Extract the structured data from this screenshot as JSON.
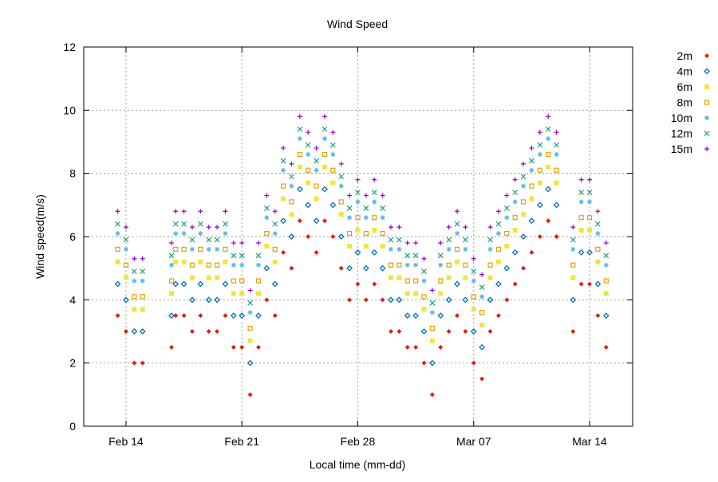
{
  "chart_data": {
    "type": "scatter",
    "title": "Wind Speed",
    "xlabel": "Local time (mm-dd)",
    "ylabel": "Wind speed(m/s)",
    "x_units": "day index where Feb 1 = 1 (Mar 1 = 29)",
    "xlim": [
      11.45,
      44.6
    ],
    "ylim": [
      0,
      12
    ],
    "grid": true,
    "legend_position": "outside-top-right",
    "xticks": [
      {
        "value": 14,
        "label": "Feb 14"
      },
      {
        "value": 21,
        "label": "Feb 21"
      },
      {
        "value": 28,
        "label": "Feb 28"
      },
      {
        "value": 35,
        "label": "Mar 07"
      },
      {
        "value": 42,
        "label": "Mar 14"
      }
    ],
    "yticks": [
      {
        "value": 0,
        "label": "0"
      },
      {
        "value": 2,
        "label": "2"
      },
      {
        "value": 4,
        "label": "4"
      },
      {
        "value": 6,
        "label": "6"
      },
      {
        "value": 8,
        "label": "8"
      },
      {
        "value": 10,
        "label": "10"
      },
      {
        "value": 12,
        "label": "12"
      }
    ],
    "x": [
      13.5,
      14,
      14.5,
      15,
      16.75,
      17,
      17.5,
      18,
      18.5,
      19,
      19.5,
      20,
      20.5,
      21,
      21.5,
      22,
      22.5,
      23,
      23.5,
      24,
      24.5,
      25,
      25.5,
      26,
      26.5,
      27,
      27.5,
      28,
      28.5,
      29,
      29.5,
      30,
      30.5,
      31,
      31.5,
      32,
      32.5,
      33,
      33.5,
      34,
      34.5,
      35,
      35.5,
      36,
      36.5,
      37,
      37.5,
      38,
      38.5,
      39,
      39.5,
      40,
      41,
      41.5,
      42,
      42.5,
      43
    ],
    "series": [
      {
        "name": "2m",
        "color": "#e51e10",
        "marker": "filled-diamond",
        "values": [
          3.5,
          3.0,
          2.0,
          2.0,
          2.5,
          3.5,
          3.5,
          3.0,
          3.5,
          3.0,
          3.0,
          3.5,
          2.5,
          2.5,
          1.0,
          2.5,
          4.0,
          3.5,
          5.5,
          5.0,
          6.5,
          6.0,
          5.5,
          6.5,
          6.0,
          5.0,
          4.0,
          4.5,
          4.0,
          4.5,
          4.0,
          3.0,
          3.0,
          2.5,
          2.5,
          2.0,
          1.0,
          2.5,
          3.0,
          3.5,
          3.0,
          2.0,
          1.5,
          3.0,
          3.5,
          4.0,
          4.5,
          5.0,
          5.5,
          6.0,
          6.5,
          6.0,
          3.0,
          4.5,
          4.5,
          3.5,
          2.5
        ]
      },
      {
        "name": "4m",
        "color": "#0072b2",
        "marker": "open-diamond",
        "values": [
          4.5,
          4.0,
          3.0,
          3.0,
          3.5,
          4.5,
          4.5,
          4.0,
          4.5,
          4.0,
          4.0,
          4.5,
          3.5,
          3.5,
          2.0,
          3.5,
          5.0,
          4.5,
          6.5,
          6.0,
          7.5,
          7.0,
          6.5,
          7.5,
          7.0,
          6.0,
          5.0,
          5.5,
          5.0,
          5.5,
          5.0,
          4.0,
          4.0,
          3.5,
          3.5,
          3.0,
          2.0,
          3.5,
          4.0,
          4.5,
          4.0,
          3.0,
          2.5,
          4.0,
          4.5,
          5.0,
          5.5,
          6.0,
          6.5,
          7.0,
          7.5,
          7.0,
          4.0,
          5.5,
          5.5,
          4.5,
          3.5
        ]
      },
      {
        "name": "6m",
        "color": "#f0e442",
        "marker": "filled-square",
        "values": [
          5.2,
          4.7,
          3.7,
          3.7,
          4.2,
          5.2,
          5.2,
          4.7,
          5.2,
          4.7,
          4.7,
          5.2,
          4.2,
          4.2,
          2.7,
          4.2,
          5.7,
          5.2,
          7.2,
          6.7,
          8.2,
          7.7,
          7.2,
          8.2,
          7.7,
          6.7,
          5.7,
          6.2,
          5.7,
          6.2,
          5.7,
          4.7,
          4.7,
          4.2,
          4.2,
          3.7,
          2.7,
          4.2,
          4.7,
          5.2,
          4.7,
          3.7,
          3.2,
          4.7,
          5.2,
          5.7,
          6.2,
          6.7,
          7.2,
          7.7,
          8.2,
          7.7,
          4.7,
          6.2,
          6.2,
          5.2,
          4.2
        ]
      },
      {
        "name": "8m",
        "color": "#e69f00",
        "marker": "open-square",
        "values": [
          5.6,
          5.1,
          4.1,
          4.1,
          4.6,
          5.6,
          5.6,
          5.1,
          5.6,
          5.1,
          5.1,
          5.6,
          4.6,
          4.6,
          3.1,
          4.6,
          6.1,
          5.6,
          7.6,
          7.1,
          8.6,
          8.1,
          7.6,
          8.6,
          8.1,
          7.1,
          6.1,
          6.6,
          6.1,
          6.6,
          6.1,
          5.1,
          5.1,
          4.6,
          4.6,
          4.1,
          3.1,
          4.6,
          5.1,
          5.6,
          5.1,
          4.1,
          3.6,
          5.1,
          5.6,
          6.1,
          6.6,
          7.1,
          7.6,
          8.1,
          8.6,
          8.1,
          5.1,
          6.6,
          6.6,
          5.6,
          4.6
        ]
      },
      {
        "name": "10m",
        "color": "#56b4e9",
        "marker": "star",
        "values": [
          6.1,
          5.6,
          4.6,
          4.6,
          5.1,
          6.1,
          6.1,
          5.6,
          6.1,
          5.6,
          5.6,
          6.1,
          5.1,
          5.1,
          3.6,
          5.1,
          6.6,
          6.1,
          8.1,
          7.6,
          9.1,
          8.6,
          8.1,
          9.1,
          8.6,
          7.6,
          6.6,
          7.1,
          6.6,
          7.1,
          6.6,
          5.6,
          5.6,
          5.1,
          5.1,
          4.6,
          3.6,
          5.1,
          5.6,
          6.1,
          5.6,
          4.6,
          4.1,
          5.6,
          6.1,
          6.6,
          7.1,
          7.6,
          8.1,
          8.6,
          9.1,
          8.6,
          5.6,
          7.1,
          7.1,
          6.1,
          5.1
        ]
      },
      {
        "name": "12m",
        "color": "#009e73",
        "marker": "cross",
        "values": [
          6.4,
          5.9,
          4.9,
          4.9,
          5.4,
          6.4,
          6.4,
          5.9,
          6.4,
          5.9,
          5.9,
          6.4,
          5.4,
          5.4,
          3.9,
          5.4,
          6.9,
          6.4,
          8.4,
          7.9,
          9.4,
          8.9,
          8.4,
          9.4,
          8.9,
          7.9,
          6.9,
          7.4,
          6.9,
          7.4,
          6.9,
          5.9,
          5.9,
          5.4,
          5.4,
          4.9,
          3.9,
          5.4,
          5.9,
          6.4,
          5.9,
          4.9,
          4.4,
          5.9,
          6.4,
          6.9,
          7.4,
          7.9,
          8.4,
          8.9,
          9.4,
          8.9,
          5.9,
          7.4,
          7.4,
          6.4,
          5.4
        ]
      },
      {
        "name": "15m",
        "color": "#9400d3",
        "marker": "plus",
        "values": [
          6.8,
          6.3,
          5.3,
          5.3,
          5.8,
          6.8,
          6.8,
          6.3,
          6.8,
          6.3,
          6.3,
          6.8,
          5.8,
          5.8,
          4.3,
          5.8,
          7.3,
          6.8,
          8.8,
          8.3,
          9.8,
          9.3,
          8.8,
          9.8,
          9.3,
          8.3,
          7.3,
          7.8,
          7.3,
          7.8,
          7.3,
          6.3,
          6.3,
          5.8,
          5.8,
          5.3,
          4.3,
          5.8,
          6.3,
          6.8,
          6.3,
          5.3,
          4.8,
          6.3,
          6.8,
          7.3,
          7.8,
          8.3,
          8.8,
          9.3,
          9.8,
          9.3,
          6.3,
          7.8,
          7.8,
          6.8,
          5.8
        ]
      }
    ]
  }
}
